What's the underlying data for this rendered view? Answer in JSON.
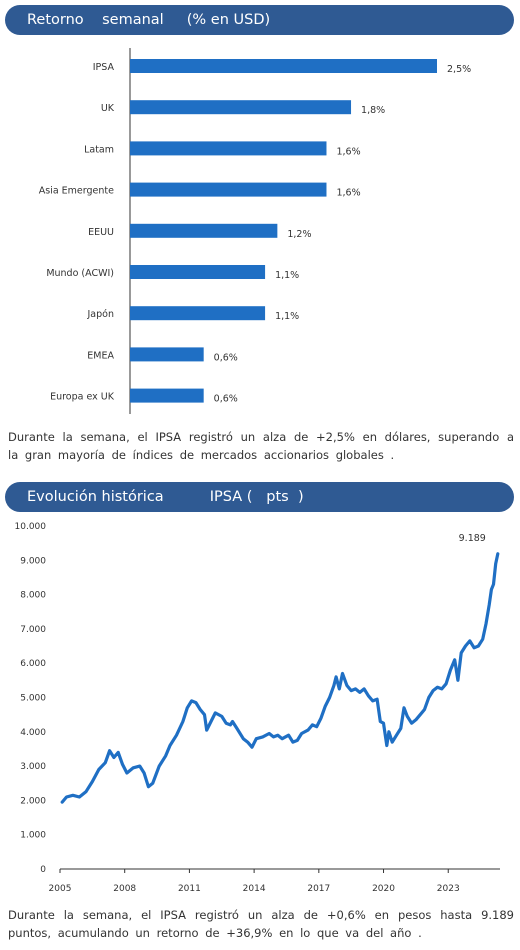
{
  "section1": {
    "title": "Retorno    semanal     (% en USD)",
    "paragraph": "Durante   la semana,   el IPSA registró  un alza de +2,5% en dólares,   superando   a la gran  mayoría   de índices de mercados    accionarios    globales   ."
  },
  "section2": {
    "title": "Evolución histórica          IPSA (   pts  )",
    "paragraph": "Durante   la semana,    el IPSA registró  un alza de +0,6% en pesos  hasta   9.189 puntos, acumulando    un retorno  de +36,9% en lo que  va del año ."
  },
  "colors": {
    "header_bg": "#2f5a93",
    "bar": "#1f6fc4",
    "line": "#1f6fc4"
  },
  "chart_data": [
    {
      "type": "bar",
      "orientation": "horizontal",
      "categories": [
        "IPSA",
        "UK",
        "Latam",
        "Asia Emergente",
        "EEUU",
        "Mundo (ACWI)",
        "Japón",
        "EMEA",
        "Europa ex UK"
      ],
      "values": [
        2.5,
        1.8,
        1.6,
        1.6,
        1.2,
        1.1,
        1.1,
        0.6,
        0.6
      ],
      "labels": [
        "2,5%",
        "1,8%",
        "1,6%",
        "1,6%",
        "1,2%",
        "1,1%",
        "1,1%",
        "0,6%",
        "0,6%"
      ],
      "unit": "%"
    },
    {
      "type": "line",
      "y_ticks": [
        "0",
        "1.000",
        "2.000",
        "3.000",
        "4.000",
        "5.000",
        "6.000",
        "7.000",
        "8.000",
        "9.000",
        "10.000"
      ],
      "ylim": [
        0,
        10000
      ],
      "x_ticks": [
        "2005",
        "2008",
        "2011",
        "2014",
        "2017",
        "2020",
        "2023"
      ],
      "xlim": [
        2005,
        2025.4
      ],
      "end_label": "9.189",
      "points": [
        [
          2005.1,
          1950
        ],
        [
          2005.3,
          2100
        ],
        [
          2005.6,
          2150
        ],
        [
          2005.9,
          2100
        ],
        [
          2006.2,
          2250
        ],
        [
          2006.5,
          2550
        ],
        [
          2006.8,
          2900
        ],
        [
          2007.1,
          3100
        ],
        [
          2007.3,
          3450
        ],
        [
          2007.5,
          3250
        ],
        [
          2007.7,
          3400
        ],
        [
          2007.9,
          3050
        ],
        [
          2008.1,
          2800
        ],
        [
          2008.4,
          2950
        ],
        [
          2008.7,
          3000
        ],
        [
          2008.9,
          2800
        ],
        [
          2009.1,
          2400
        ],
        [
          2009.3,
          2500
        ],
        [
          2009.6,
          3000
        ],
        [
          2009.9,
          3300
        ],
        [
          2010.1,
          3600
        ],
        [
          2010.4,
          3900
        ],
        [
          2010.7,
          4300
        ],
        [
          2010.9,
          4700
        ],
        [
          2011.1,
          4900
        ],
        [
          2011.3,
          4850
        ],
        [
          2011.5,
          4650
        ],
        [
          2011.7,
          4500
        ],
        [
          2011.8,
          4050
        ],
        [
          2012.0,
          4300
        ],
        [
          2012.2,
          4550
        ],
        [
          2012.5,
          4450
        ],
        [
          2012.7,
          4250
        ],
        [
          2012.9,
          4200
        ],
        [
          2013.0,
          4300
        ],
        [
          2013.2,
          4100
        ],
        [
          2013.5,
          3800
        ],
        [
          2013.7,
          3700
        ],
        [
          2013.9,
          3550
        ],
        [
          2014.1,
          3800
        ],
        [
          2014.4,
          3850
        ],
        [
          2014.7,
          3950
        ],
        [
          2014.9,
          3850
        ],
        [
          2015.1,
          3900
        ],
        [
          2015.3,
          3800
        ],
        [
          2015.6,
          3900
        ],
        [
          2015.8,
          3700
        ],
        [
          2016.0,
          3750
        ],
        [
          2016.2,
          3950
        ],
        [
          2016.5,
          4050
        ],
        [
          2016.7,
          4200
        ],
        [
          2016.9,
          4150
        ],
        [
          2017.1,
          4400
        ],
        [
          2017.3,
          4750
        ],
        [
          2017.5,
          5000
        ],
        [
          2017.7,
          5350
        ],
        [
          2017.8,
          5600
        ],
        [
          2017.95,
          5250
        ],
        [
          2018.1,
          5700
        ],
        [
          2018.3,
          5350
        ],
        [
          2018.5,
          5200
        ],
        [
          2018.7,
          5250
        ],
        [
          2018.9,
          5150
        ],
        [
          2019.1,
          5250
        ],
        [
          2019.3,
          5050
        ],
        [
          2019.5,
          4900
        ],
        [
          2019.7,
          4950
        ],
        [
          2019.85,
          4300
        ],
        [
          2020.0,
          4250
        ],
        [
          2020.15,
          3600
        ],
        [
          2020.25,
          4000
        ],
        [
          2020.4,
          3700
        ],
        [
          2020.6,
          3900
        ],
        [
          2020.8,
          4100
        ],
        [
          2020.95,
          4700
        ],
        [
          2021.1,
          4450
        ],
        [
          2021.3,
          4250
        ],
        [
          2021.5,
          4350
        ],
        [
          2021.7,
          4500
        ],
        [
          2021.9,
          4650
        ],
        [
          2022.1,
          5000
        ],
        [
          2022.3,
          5200
        ],
        [
          2022.5,
          5300
        ],
        [
          2022.7,
          5250
        ],
        [
          2022.9,
          5400
        ],
        [
          2023.1,
          5800
        ],
        [
          2023.3,
          6100
        ],
        [
          2023.45,
          5500
        ],
        [
          2023.6,
          6300
        ],
        [
          2023.8,
          6500
        ],
        [
          2024.0,
          6650
        ],
        [
          2024.2,
          6450
        ],
        [
          2024.4,
          6500
        ],
        [
          2024.6,
          6700
        ],
        [
          2024.75,
          7150
        ],
        [
          2024.9,
          7700
        ],
        [
          2025.0,
          8150
        ],
        [
          2025.1,
          8300
        ],
        [
          2025.2,
          8900
        ],
        [
          2025.3,
          9189
        ]
      ]
    }
  ]
}
